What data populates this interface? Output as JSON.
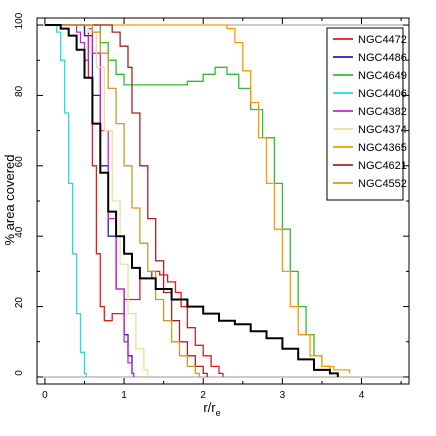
{
  "chart_data": {
    "type": "line",
    "title": "",
    "xlabel": "r/r",
    "xlabel_sub": "e",
    "ylabel": "% area covered",
    "xlim": [
      -0.1,
      4.6
    ],
    "ylim": [
      -2,
      102
    ],
    "x_ticks": [
      0,
      1,
      2,
      3,
      4
    ],
    "y_ticks": [
      0,
      20,
      40,
      60,
      80,
      100
    ],
    "reference_lines": [
      0,
      100
    ],
    "grid": false,
    "legend_position": "top-right",
    "series": [
      {
        "name": "NGC4472",
        "color": "#e41a1c",
        "points": [
          [
            0.0,
            100
          ],
          [
            0.3,
            100
          ],
          [
            0.5,
            97
          ],
          [
            0.55,
            85
          ],
          [
            0.6,
            60
          ],
          [
            0.65,
            35
          ],
          [
            0.7,
            20
          ],
          [
            0.75,
            16
          ],
          [
            0.85,
            18
          ],
          [
            1.0,
            22
          ],
          [
            1.2,
            28
          ],
          [
            1.35,
            30
          ],
          [
            1.45,
            29
          ],
          [
            1.55,
            27
          ],
          [
            1.65,
            24
          ],
          [
            1.72,
            20
          ],
          [
            1.8,
            14
          ],
          [
            1.9,
            9
          ],
          [
            2.0,
            6
          ],
          [
            2.1,
            3
          ],
          [
            2.2,
            1
          ],
          [
            2.25,
            0
          ]
        ]
      },
      {
        "name": "NGC4486",
        "color": "#2020c0",
        "points": [
          [
            0.0,
            100
          ],
          [
            0.4,
            100
          ],
          [
            0.5,
            97
          ],
          [
            0.6,
            80
          ],
          [
            0.7,
            60
          ],
          [
            0.8,
            40
          ],
          [
            0.9,
            25
          ],
          [
            1.0,
            12
          ],
          [
            1.05,
            6
          ],
          [
            1.1,
            1
          ],
          [
            1.12,
            0
          ]
        ]
      },
      {
        "name": "NGC4649",
        "color": "#33bb33",
        "points": [
          [
            0.0,
            100
          ],
          [
            0.6,
            100
          ],
          [
            0.7,
            95
          ],
          [
            0.8,
            90
          ],
          [
            0.9,
            86
          ],
          [
            1.0,
            83
          ],
          [
            1.5,
            83
          ],
          [
            1.8,
            84
          ],
          [
            2.0,
            86
          ],
          [
            2.15,
            88
          ],
          [
            2.3,
            86
          ],
          [
            2.45,
            82
          ],
          [
            2.6,
            76
          ],
          [
            2.75,
            68
          ],
          [
            2.9,
            55
          ],
          [
            3.0,
            42
          ],
          [
            3.1,
            30
          ],
          [
            3.2,
            20
          ],
          [
            3.3,
            12
          ],
          [
            3.4,
            6
          ],
          [
            3.5,
            3
          ],
          [
            3.6,
            1
          ],
          [
            3.7,
            0
          ]
        ]
      },
      {
        "name": "NGC4406",
        "color": "#22dddd",
        "points": [
          [
            0.0,
            100
          ],
          [
            0.15,
            98
          ],
          [
            0.2,
            90
          ],
          [
            0.25,
            75
          ],
          [
            0.3,
            55
          ],
          [
            0.35,
            35
          ],
          [
            0.4,
            18
          ],
          [
            0.45,
            7
          ],
          [
            0.5,
            1
          ],
          [
            0.52,
            0
          ]
        ]
      },
      {
        "name": "NGC4382",
        "color": "#cc22cc",
        "points": [
          [
            0.0,
            100
          ],
          [
            0.35,
            100
          ],
          [
            0.4,
            98
          ],
          [
            0.45,
            95
          ],
          [
            0.5,
            90
          ],
          [
            0.55,
            99
          ],
          [
            0.6,
            92
          ],
          [
            0.7,
            70
          ],
          [
            0.8,
            45
          ],
          [
            0.9,
            25
          ],
          [
            1.0,
            10
          ],
          [
            1.05,
            4
          ],
          [
            1.1,
            1
          ],
          [
            1.12,
            0
          ]
        ]
      },
      {
        "name": "NGC4374",
        "color": "#eedd99",
        "points": [
          [
            0.0,
            100
          ],
          [
            0.45,
            100
          ],
          [
            0.55,
            98
          ],
          [
            0.65,
            88
          ],
          [
            0.75,
            70
          ],
          [
            0.85,
            50
          ],
          [
            0.95,
            32
          ],
          [
            1.05,
            18
          ],
          [
            1.15,
            8
          ],
          [
            1.25,
            2
          ],
          [
            1.3,
            0
          ]
        ]
      },
      {
        "name": "NGC4365",
        "color": "#ff9900",
        "points": [
          [
            0.0,
            100
          ],
          [
            2.2,
            100
          ],
          [
            2.3,
            99
          ],
          [
            2.4,
            95
          ],
          [
            2.5,
            87
          ],
          [
            2.6,
            78
          ],
          [
            2.7,
            68
          ],
          [
            2.8,
            55
          ],
          [
            2.9,
            42
          ],
          [
            3.0,
            30
          ],
          [
            3.1,
            20
          ],
          [
            3.2,
            12
          ],
          [
            3.35,
            6
          ],
          [
            3.5,
            3
          ],
          [
            3.65,
            2
          ],
          [
            3.8,
            2
          ],
          [
            3.85,
            1
          ]
        ]
      },
      {
        "name": "NGC4621",
        "color": "#aa2222",
        "points": [
          [
            0.0,
            100
          ],
          [
            0.8,
            100
          ],
          [
            0.85,
            98
          ],
          [
            0.95,
            94
          ],
          [
            1.05,
            88
          ],
          [
            1.1,
            75
          ],
          [
            1.2,
            60
          ],
          [
            1.3,
            45
          ],
          [
            1.4,
            33
          ],
          [
            1.5,
            24
          ],
          [
            1.6,
            16
          ],
          [
            1.7,
            10
          ],
          [
            1.8,
            6
          ],
          [
            1.9,
            3
          ],
          [
            2.0,
            1
          ],
          [
            2.05,
            0
          ]
        ]
      },
      {
        "name": "NGC4552",
        "color": "#cc9922",
        "points": [
          [
            0.0,
            100
          ],
          [
            0.5,
            100
          ],
          [
            0.6,
            98
          ],
          [
            0.7,
            92
          ],
          [
            0.8,
            82
          ],
          [
            0.9,
            72
          ],
          [
            1.0,
            60
          ],
          [
            1.1,
            48
          ],
          [
            1.2,
            38
          ],
          [
            1.3,
            30
          ],
          [
            1.4,
            22
          ],
          [
            1.5,
            16
          ],
          [
            1.6,
            10
          ],
          [
            1.7,
            6
          ],
          [
            1.8,
            3
          ],
          [
            1.9,
            1
          ],
          [
            1.95,
            0
          ]
        ]
      },
      {
        "name": "",
        "color": "#000000",
        "points": [
          [
            0.0,
            100
          ],
          [
            0.1,
            100
          ],
          [
            0.2,
            99
          ],
          [
            0.3,
            97
          ],
          [
            0.4,
            93
          ],
          [
            0.5,
            85
          ],
          [
            0.6,
            72
          ],
          [
            0.7,
            58
          ],
          [
            0.8,
            47
          ],
          [
            0.9,
            40
          ],
          [
            1.0,
            35
          ],
          [
            1.1,
            31
          ],
          [
            1.2,
            28
          ],
          [
            1.4,
            25
          ],
          [
            1.6,
            22
          ],
          [
            1.8,
            20
          ],
          [
            2.0,
            18
          ],
          [
            2.2,
            16
          ],
          [
            2.4,
            15
          ],
          [
            2.6,
            13
          ],
          [
            2.8,
            11
          ],
          [
            3.0,
            8
          ],
          [
            3.2,
            5
          ],
          [
            3.4,
            2
          ],
          [
            3.6,
            1
          ],
          [
            3.7,
            0
          ]
        ]
      }
    ]
  }
}
